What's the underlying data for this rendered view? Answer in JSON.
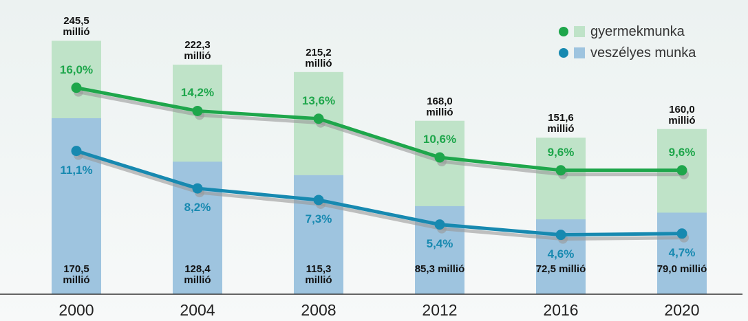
{
  "chart_data": {
    "type": "bar-line",
    "categories": [
      "2000",
      "2004",
      "2008",
      "2012",
      "2016",
      "2020"
    ],
    "ylim": [
      0,
      285
    ],
    "y2lim": [
      0,
      22.8
    ],
    "legend": "top-right",
    "series": [
      {
        "name": "gyermekmunka",
        "color": "#bfe3c8",
        "line_color": "#1ea64b",
        "values": [
          245.5,
          222.3,
          215.2,
          168.0,
          151.6,
          160.0
        ],
        "value_labels": [
          "245,5 millió",
          "222,3 millió",
          "215,2 millió",
          "168,0 millió",
          "151,6 millió",
          "160,0 millió"
        ],
        "share": [
          16.0,
          14.2,
          13.6,
          10.6,
          9.6,
          9.6
        ],
        "share_labels": [
          "16,0%",
          "14,2%",
          "13,6%",
          "10,6%",
          "9,6%",
          "9,6%"
        ]
      },
      {
        "name": "veszélyes munka",
        "color": "#9ec4df",
        "line_color": "#1789b0",
        "values": [
          170.5,
          128.4,
          115.3,
          85.3,
          72.5,
          79.0
        ],
        "value_labels": [
          "170,5 millió",
          "128,4 millió",
          "115,3 millió",
          "85,3 millió",
          "72,5 millió",
          "79,0 millió"
        ],
        "share": [
          11.1,
          8.2,
          7.3,
          5.4,
          4.6,
          4.7
        ],
        "share_labels": [
          "11,1%",
          "8,2%",
          "7,3%",
          "5,4%",
          "4,6%",
          "4,7%"
        ]
      }
    ]
  }
}
